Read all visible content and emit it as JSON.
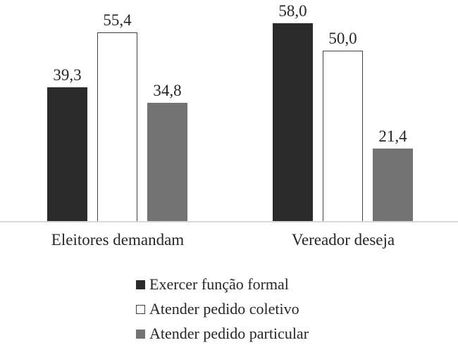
{
  "chart_data": {
    "type": "bar",
    "title": "",
    "xlabel": "",
    "ylabel": "",
    "categories": [
      "Eleitores demandam",
      "Vereador deseja"
    ],
    "series": [
      {
        "name": "Exercer função formal",
        "values": [
          39.3,
          58.0
        ],
        "labels": [
          "39,3",
          "58,0"
        ],
        "fill": "#2b2b2b",
        "border": "#2b2b2b"
      },
      {
        "name": "Atender pedido coletivo",
        "values": [
          55.4,
          50.0
        ],
        "labels": [
          "55,4",
          "50,0"
        ],
        "fill": "#ffffff",
        "border": "#404040"
      },
      {
        "name": "Atender pedido particular",
        "values": [
          34.8,
          21.4
        ],
        "labels": [
          "34,8",
          "21,4"
        ],
        "fill": "#737373",
        "border": "#737373"
      }
    ],
    "ylim": [
      0,
      64.8
    ],
    "grid": false,
    "legend_position": "bottom-center",
    "axis_line_color": "#d9d9d9",
    "value_label_format": "comma-decimal"
  }
}
